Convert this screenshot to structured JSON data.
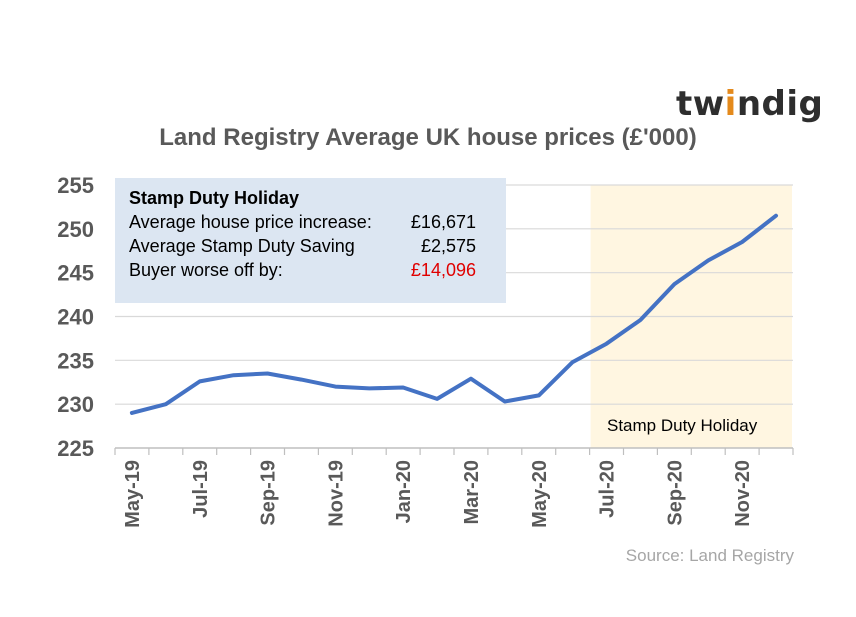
{
  "logo": {
    "text_pre": "tw",
    "text_i": "i",
    "text_post": "ndig"
  },
  "chart_data": {
    "type": "line",
    "title": "Land Registry Average UK house prices (£'000)",
    "xlabel": "",
    "ylabel": "",
    "ylim": [
      225,
      255
    ],
    "yticks": [
      225,
      230,
      235,
      240,
      245,
      250,
      255
    ],
    "grid": true,
    "categories": [
      "May-19",
      "Jun-19",
      "Jul-19",
      "Aug-19",
      "Sep-19",
      "Oct-19",
      "Nov-19",
      "Dec-19",
      "Jan-20",
      "Feb-20",
      "Mar-20",
      "Apr-20",
      "May-20",
      "Jun-20",
      "Jul-20",
      "Aug-20",
      "Sep-20",
      "Oct-20",
      "Nov-20",
      "Dec-20"
    ],
    "xtick_labels": [
      "May-19",
      "Jul-19",
      "Sep-19",
      "Nov-19",
      "Jan-20",
      "Mar-20",
      "May-20",
      "Jul-20",
      "Sep-20",
      "Nov-20"
    ],
    "series": [
      {
        "values": [
          229.0,
          230.0,
          232.6,
          233.3,
          233.5,
          232.8,
          232.0,
          231.8,
          231.9,
          230.6,
          232.9,
          230.3,
          231.0,
          234.8,
          236.9,
          239.6,
          243.7,
          246.4,
          248.5,
          251.5
        ],
        "color": "#4472c4"
      }
    ],
    "shaded_region": {
      "from": "Jul-20",
      "to": "Dec-20",
      "label": "Stamp Duty Holiday",
      "color": "#fff6e1"
    },
    "source": "Source:  Land Registry"
  },
  "info_box": {
    "title": "Stamp Duty Holiday",
    "rows": [
      {
        "label": "Average house price increase:",
        "value": "£16,671"
      },
      {
        "label": "Average Stamp Duty Saving",
        "value": "£2,575"
      },
      {
        "label": "Buyer worse off by:",
        "value": "£14,096",
        "value_color": "#e00000"
      }
    ]
  }
}
